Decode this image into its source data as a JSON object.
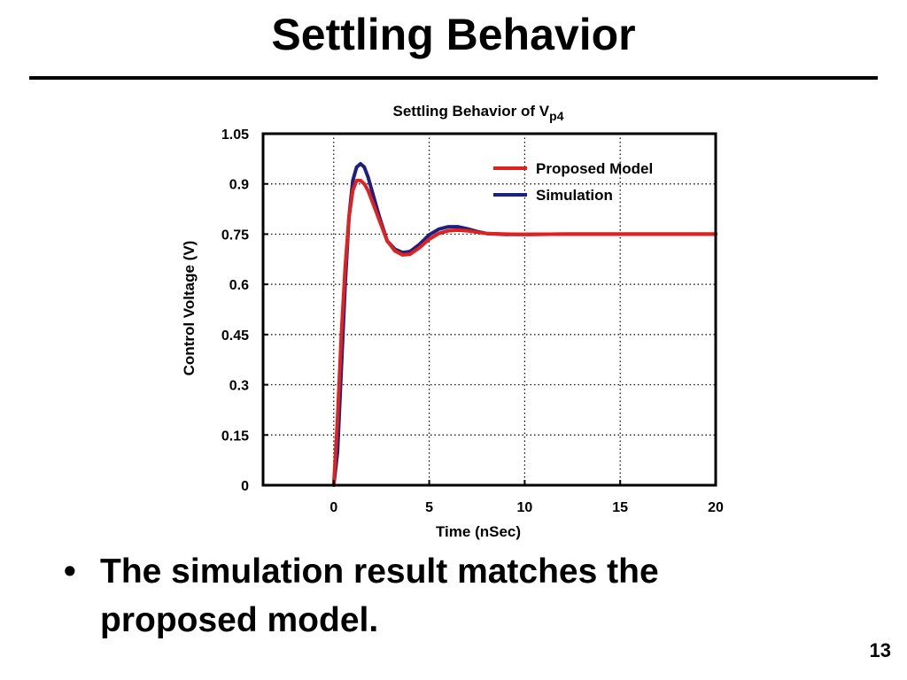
{
  "slide": {
    "title": "Settling Behavior",
    "bullet_symbol": "•",
    "bullet_text": "The simulation result matches the proposed model.",
    "page_number": "13"
  },
  "chart_data": {
    "type": "line",
    "title": "Settling Behavior of V",
    "title_subscript": "p4",
    "xlabel": "Time (nSec)",
    "ylabel": "Control Voltage  (V)",
    "xlim": [
      -3.7,
      20
    ],
    "ylim": [
      0,
      1.05
    ],
    "xticks": [
      0,
      5,
      10,
      15,
      20
    ],
    "yticks": [
      0,
      0.15,
      0.3,
      0.45,
      0.6,
      0.75,
      0.9,
      1.05
    ],
    "xtick_labels": [
      "0",
      "5",
      "10",
      "15",
      "20"
    ],
    "ytick_labels": [
      "0",
      "0.15",
      "0.3",
      "0.45",
      "0.6",
      "0.75",
      "0.9",
      "1.05"
    ],
    "grid": true,
    "legend_position": "top-right",
    "series": [
      {
        "name": "Proposed Model",
        "color": "#e0221f",
        "x": [
          0,
          0.2,
          0.4,
          0.6,
          0.8,
          1.0,
          1.2,
          1.4,
          1.6,
          1.8,
          2.0,
          2.4,
          2.8,
          3.2,
          3.6,
          4.0,
          4.5,
          5.0,
          5.5,
          6.0,
          6.5,
          7.0,
          7.5,
          8.0,
          9.0,
          10.0,
          12.0,
          15.0,
          20.0
        ],
        "y": [
          0,
          0.2,
          0.45,
          0.65,
          0.8,
          0.88,
          0.91,
          0.91,
          0.9,
          0.88,
          0.85,
          0.79,
          0.73,
          0.7,
          0.688,
          0.69,
          0.71,
          0.735,
          0.752,
          0.76,
          0.762,
          0.76,
          0.756,
          0.752,
          0.75,
          0.749,
          0.75,
          0.75,
          0.75
        ]
      },
      {
        "name": "Simulation",
        "color": "#1f1f80",
        "x": [
          0,
          0.2,
          0.4,
          0.6,
          0.8,
          1.0,
          1.2,
          1.4,
          1.6,
          1.8,
          2.0,
          2.4,
          2.8,
          3.2,
          3.6,
          4.0,
          4.5,
          5.0,
          5.5,
          6.0,
          6.5,
          7.0,
          7.5,
          8.0,
          9.0,
          10.0,
          12.0,
          15.0,
          20.0
        ],
        "y": [
          0,
          0.1,
          0.35,
          0.6,
          0.8,
          0.91,
          0.95,
          0.96,
          0.95,
          0.92,
          0.88,
          0.8,
          0.73,
          0.705,
          0.695,
          0.698,
          0.72,
          0.748,
          0.765,
          0.772,
          0.772,
          0.766,
          0.758,
          0.752,
          0.749,
          0.749,
          0.75,
          0.75,
          0.75
        ]
      }
    ]
  }
}
